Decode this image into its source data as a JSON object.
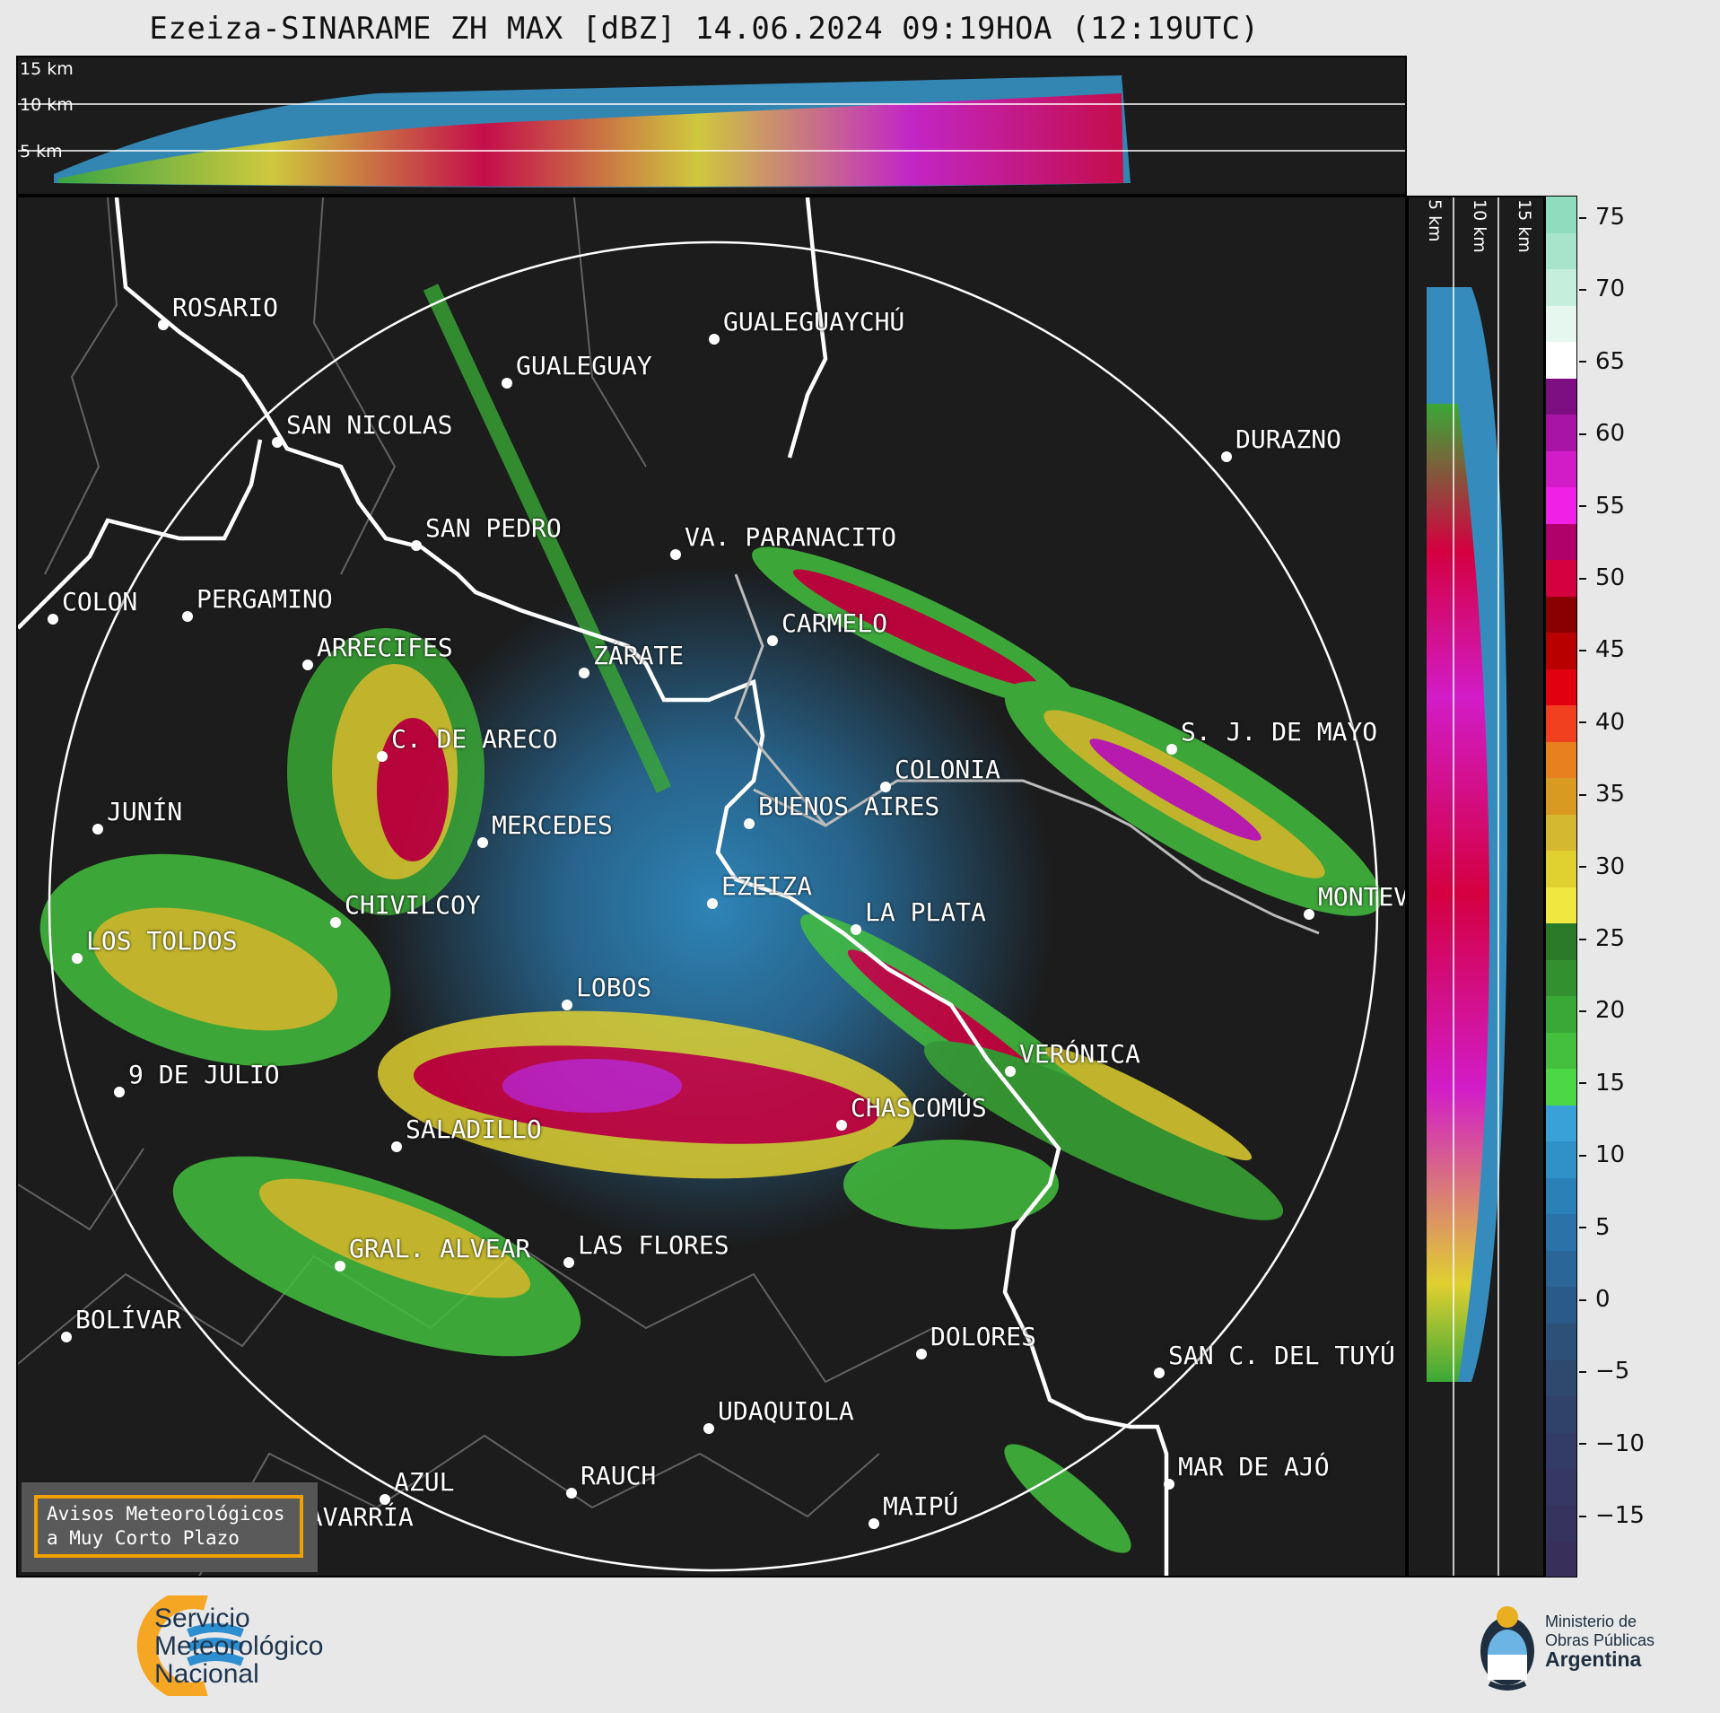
{
  "title": "Ezeiza-SINARAME ZH MAX [dBZ] 14.06.2024 09:19HOA (12:19UTC)",
  "altitude_labels": [
    "15 km",
    "10 km",
    "5 km"
  ],
  "colorbar": {
    "ticks": [
      "75",
      "70",
      "65",
      "60",
      "55",
      "50",
      "45",
      "40",
      "35",
      "30",
      "25",
      "20",
      "15",
      "10",
      "5",
      "0",
      "−5",
      "−10",
      "−15"
    ],
    "colors": [
      "#8fdcbe",
      "#a8e4cc",
      "#c6eedd",
      "#e6f7ef",
      "#ffffff",
      "#7e0f82",
      "#a814a6",
      "#d21cc8",
      "#f020e6",
      "#b0006a",
      "#d40040",
      "#8a0000",
      "#b80000",
      "#e00010",
      "#f04020",
      "#e88020",
      "#d89a20",
      "#d4b830",
      "#e0d030",
      "#f0e840",
      "#2a7a2a",
      "#33902f",
      "#3aa836",
      "#44c03e",
      "#4cd846",
      "#3aa0d8",
      "#3090c8",
      "#2c80b8",
      "#2a72a8",
      "#2a6698",
      "#2a5a88",
      "#2c5078",
      "#2e486e",
      "#30426a",
      "#323c66",
      "#343862",
      "#36345e",
      "#382f5a"
    ]
  },
  "cities": [
    {
      "name": "ROSARIO"
    },
    {
      "name": "GUALEGUAYCHÚ"
    },
    {
      "name": "GUALEGUAY"
    },
    {
      "name": "SAN NICOLAS"
    },
    {
      "name": "DURAZNO"
    },
    {
      "name": "SAN PEDRO"
    },
    {
      "name": "VA. PARANACITO"
    },
    {
      "name": "COLON"
    },
    {
      "name": "PERGAMINO"
    },
    {
      "name": "CARMELO"
    },
    {
      "name": "ARRECIFES"
    },
    {
      "name": "ZÁRATE"
    },
    {
      "name": "S. J. DE MAYO"
    },
    {
      "name": "C. DE ARECO"
    },
    {
      "name": "COLONIA"
    },
    {
      "name": "JUNÍN"
    },
    {
      "name": "BUENOS AIRES"
    },
    {
      "name": "MERCEDES"
    },
    {
      "name": "EZEIZA"
    },
    {
      "name": "MONTEVIDEO"
    },
    {
      "name": "CHIVILCOY"
    },
    {
      "name": "LA PLATA"
    },
    {
      "name": "LOS TOLDOS"
    },
    {
      "name": "LOBOS"
    },
    {
      "name": "VERÓNICA"
    },
    {
      "name": "9 DE JULIO"
    },
    {
      "name": "CHASCOMÚS"
    },
    {
      "name": "SALADILLO"
    },
    {
      "name": "GRAL. ALVEAR"
    },
    {
      "name": "LAS FLORES"
    },
    {
      "name": "BOLÍVAR"
    },
    {
      "name": "DOLORES"
    },
    {
      "name": "SAN C. DEL TUYÚ"
    },
    {
      "name": "UDAQUIOLA"
    },
    {
      "name": "MAR DE AJÓ"
    },
    {
      "name": "AZUL"
    },
    {
      "name": "RAUCH"
    },
    {
      "name": "OLAVARRÍA"
    },
    {
      "name": "MAIPÚ"
    }
  ],
  "avisos": {
    "line1": "Avisos Meteorológicos",
    "line2": "a Muy Corto Plazo"
  },
  "smn": {
    "line1": "Servicio",
    "line2": "Meteorológico",
    "line3": "Nacional"
  },
  "mop": {
    "line1": "Ministerio de",
    "line2": "Obras Públicas",
    "line3": "Argentina"
  }
}
